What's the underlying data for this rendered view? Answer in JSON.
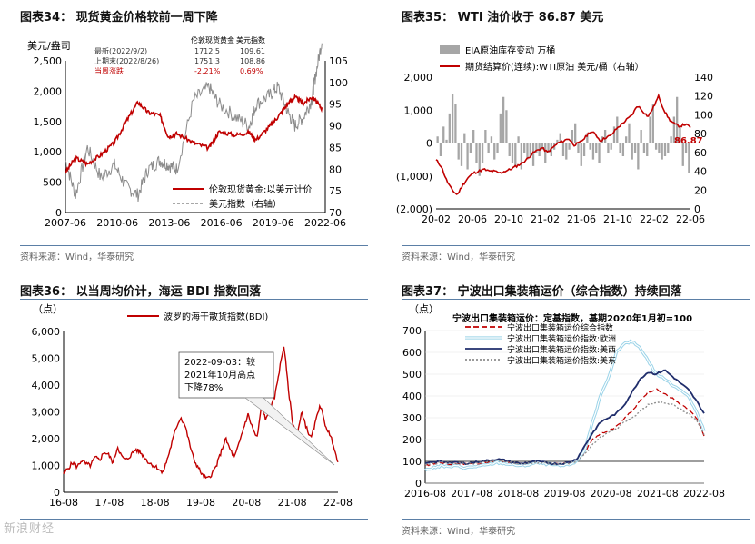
{
  "panels": {
    "p34": {
      "title": "图表34：  现货黄金价格较前一周下降",
      "source": "资料来源：Wind，华泰研究",
      "unit_left": "美元/盎司",
      "table": {
        "headers": [
          "",
          "伦敦现货黄金",
          "美元指数"
        ],
        "rows": [
          [
            "最新(2022/9/2)",
            "1712.5",
            "109.61"
          ],
          [
            "上期末(2022/8/26)",
            "1751.3",
            "108.86"
          ],
          [
            "当周涨跌",
            "-2.21%",
            "0.69%"
          ]
        ]
      }
    },
    "p35": {
      "title": "图表35：  WTI 油价收于 86.87 美元",
      "source": "资料来源：Wind，华泰研究",
      "endlabel": "86.87"
    },
    "p36": {
      "title": "图表36：  以当周均价计，海运 BDI 指数回落",
      "source": "",
      "unit_left": "（点）",
      "annotation": [
        "2022-09-03：较",
        "2021年10月高点",
        "下降78%"
      ]
    },
    "p37": {
      "title": "图表37：  宁波出口集装箱运价（综合指数）持续回落",
      "source": "资料来源：Wind，华泰研究",
      "unit_left": "（点）",
      "subtitle": "宁波出口集装箱运价：定基指数，基期2020年1月初=100"
    }
  },
  "watermark": "新浪财经",
  "chart_data": [
    {
      "id": "p34",
      "type": "line",
      "x": [
        2007.4,
        2008,
        2008.7,
        2009.5,
        2010.3,
        2011,
        2011.7,
        2012.3,
        2013,
        2013.5,
        2014,
        2015,
        2015.9,
        2016.5,
        2017.5,
        2018.3,
        2018.7,
        2019.5,
        2020,
        2020.6,
        2021,
        2021.5,
        2022,
        2022.2,
        2022.6
      ],
      "x_ticks": [
        "2007-06",
        "2010-06",
        "2013-06",
        "2016-06",
        "2019-06",
        "2022-06"
      ],
      "x_tick_values": [
        2007.4,
        2010.4,
        2013.4,
        2016.4,
        2019.4,
        2022.4
      ],
      "ylim": [
        0,
        2500
      ],
      "y_ticks": [
        "0",
        "500",
        "1,000",
        "1,500",
        "2,000",
        "2,500"
      ],
      "y2lim": [
        70,
        105
      ],
      "y2_ticks": [
        "70",
        "75",
        "80",
        "85",
        "90",
        "95",
        "100",
        "105"
      ],
      "series": [
        {
          "name": "伦敦现货黄金:以美元计价",
          "axis": "left",
          "color": "#c00000",
          "values": [
            660,
            900,
            800,
            950,
            1150,
            1500,
            1820,
            1650,
            1600,
            1250,
            1300,
            1150,
            1060,
            1330,
            1280,
            1320,
            1200,
            1420,
            1580,
            1800,
            1900,
            1800,
            1900,
            1850,
            1712
          ]
        },
        {
          "name": "美元指数（右轴）",
          "axis": "right",
          "color": "#8c8c8c",
          "values": [
            82,
            74,
            85,
            78,
            81,
            76,
            74,
            80,
            82,
            81,
            80,
            96,
            99,
            95,
            92,
            90,
            95,
            97,
            99,
            93,
            90,
            92,
            96,
            101,
            109.6
          ]
        }
      ]
    },
    {
      "id": "p35",
      "type": "bar",
      "x_ticks": [
        "20-02",
        "20-06",
        "20-10",
        "21-02",
        "21-06",
        "21-10",
        "22-02",
        "22-06"
      ],
      "ylim": [
        -2000,
        2000
      ],
      "y_ticks": [
        "(2,000)",
        "(1,000)",
        "0",
        "1,000",
        "2,000"
      ],
      "y2lim": [
        0,
        140
      ],
      "y2_ticks": [
        "0",
        "20",
        "40",
        "60",
        "80",
        "100",
        "120",
        "140"
      ],
      "series": [
        {
          "name": "EIA原油库存变动 万桶",
          "axis": "left",
          "color": "#a6a6a6",
          "values": [
            200,
            -400,
            500,
            100,
            900,
            1500,
            1200,
            -500,
            -700,
            300,
            -800,
            -300,
            400,
            -600,
            -1000,
            -600,
            400,
            -300,
            200,
            -500,
            -300,
            900,
            1400,
            1000,
            -400,
            -600,
            -700,
            200,
            -800,
            -300,
            -500,
            -400,
            -700,
            -300,
            -400,
            -200,
            -600,
            -300,
            -400,
            -200,
            100,
            300,
            -400,
            -500,
            -200,
            400,
            600,
            -300,
            -700,
            -400,
            300,
            -200,
            -500,
            -300,
            -600,
            200,
            400,
            -300,
            -200,
            500,
            800,
            -300,
            -400,
            200,
            600,
            -500,
            -300,
            -800,
            400,
            -300,
            -400,
            800,
            1200,
            -200,
            -300,
            -500,
            -400,
            -300,
            200,
            800,
            1400,
            500,
            -700,
            -300,
            -900
          ]
        },
        {
          "name": "期货结算价(连续):WTI原油 美元/桶（右轴）",
          "axis": "right",
          "color": "#c00000",
          "values": [
            52,
            45,
            30,
            20,
            15,
            25,
            33,
            38,
            40,
            42,
            40,
            40,
            38,
            40,
            42,
            45,
            48,
            52,
            58,
            62,
            65,
            60,
            65,
            70,
            72,
            75,
            68,
            70,
            75,
            82,
            80,
            72,
            76,
            78,
            85,
            90,
            95,
            100,
            110,
            104,
            98,
            108,
            120,
            105,
            95,
            90,
            88,
            90,
            86.87
          ]
        }
      ]
    },
    {
      "id": "p36",
      "type": "line",
      "x_ticks": [
        "16-08",
        "17-08",
        "18-08",
        "19-08",
        "20-08",
        "21-08",
        "22-08"
      ],
      "ylim": [
        0,
        6000
      ],
      "y_ticks": [
        "0",
        "1,000",
        "2,000",
        "3,000",
        "4,000",
        "5,000",
        "6,000"
      ],
      "series": [
        {
          "name": "波罗的海干散货指数(BDI)",
          "color": "#c00000",
          "values": [
            700,
            900,
            1100,
            950,
            1200,
            1050,
            1000,
            1300,
            1200,
            1500,
            1400,
            1100,
            1700,
            1300,
            1200,
            1400,
            1600,
            1500,
            1300,
            1100,
            1000,
            900,
            700,
            1200,
            1800,
            2400,
            2800,
            2500,
            1800,
            1200,
            900,
            600,
            500,
            700,
            1000,
            1500,
            2000,
            1600,
            1300,
            1800,
            2400,
            2900,
            2400,
            2000,
            3200,
            2700,
            3100,
            3600,
            4600,
            5500,
            3800,
            2500,
            2200,
            3000,
            2400,
            2000,
            2600,
            3300,
            2600,
            2200,
            1800,
            1050
          ]
        }
      ]
    },
    {
      "id": "p37",
      "type": "line",
      "x_ticks": [
        "2016-08",
        "2017-08",
        "2018-08",
        "2019-08",
        "2020-08",
        "2021-08",
        "2022-08"
      ],
      "ylim": [
        0,
        700
      ],
      "y_ticks": [
        "0",
        "100",
        "200",
        "300",
        "400",
        "500",
        "600",
        "700"
      ],
      "series": [
        {
          "name": "宁波出口集装箱运价综合指数",
          "color": "#c00000",
          "dash": "6,3",
          "values": [
            80,
            90,
            95,
            85,
            90,
            88,
            92,
            90,
            95,
            100,
            98,
            92,
            88,
            90,
            95,
            92,
            90,
            88,
            92,
            100,
            140,
            200,
            230,
            240,
            260,
            300,
            330,
            380,
            420,
            430,
            410,
            390,
            360,
            340,
            300,
            220
          ]
        },
        {
          "name": "宁波出口集装箱运价指数:欧洲",
          "color": "#9ad3e8",
          "double": true,
          "values": [
            60,
            70,
            80,
            75,
            80,
            70,
            75,
            80,
            85,
            95,
            90,
            85,
            80,
            85,
            95,
            90,
            85,
            80,
            85,
            100,
            150,
            280,
            400,
            480,
            600,
            640,
            650,
            620,
            560,
            500,
            480,
            450,
            430,
            400,
            330,
            240
          ]
        },
        {
          "name": "宁波出口集装箱运价指数:美西",
          "color": "#1f2d6b",
          "values": [
            90,
            95,
            100,
            95,
            95,
            90,
            95,
            100,
            105,
            110,
            105,
            95,
            90,
            95,
            100,
            95,
            90,
            90,
            95,
            110,
            170,
            230,
            280,
            300,
            320,
            360,
            420,
            480,
            510,
            500,
            520,
            490,
            460,
            430,
            380,
            320
          ]
        },
        {
          "name": "宁波出口集装箱运价指数:美东",
          "color": "#8c8c8c",
          "dash": "2,2",
          "values": [
            85,
            90,
            95,
            90,
            92,
            88,
            90,
            95,
            100,
            105,
            100,
            95,
            90,
            92,
            95,
            93,
            90,
            88,
            92,
            100,
            130,
            180,
            210,
            230,
            250,
            280,
            300,
            330,
            360,
            370,
            370,
            360,
            340,
            320,
            290,
            220
          ]
        }
      ]
    }
  ]
}
